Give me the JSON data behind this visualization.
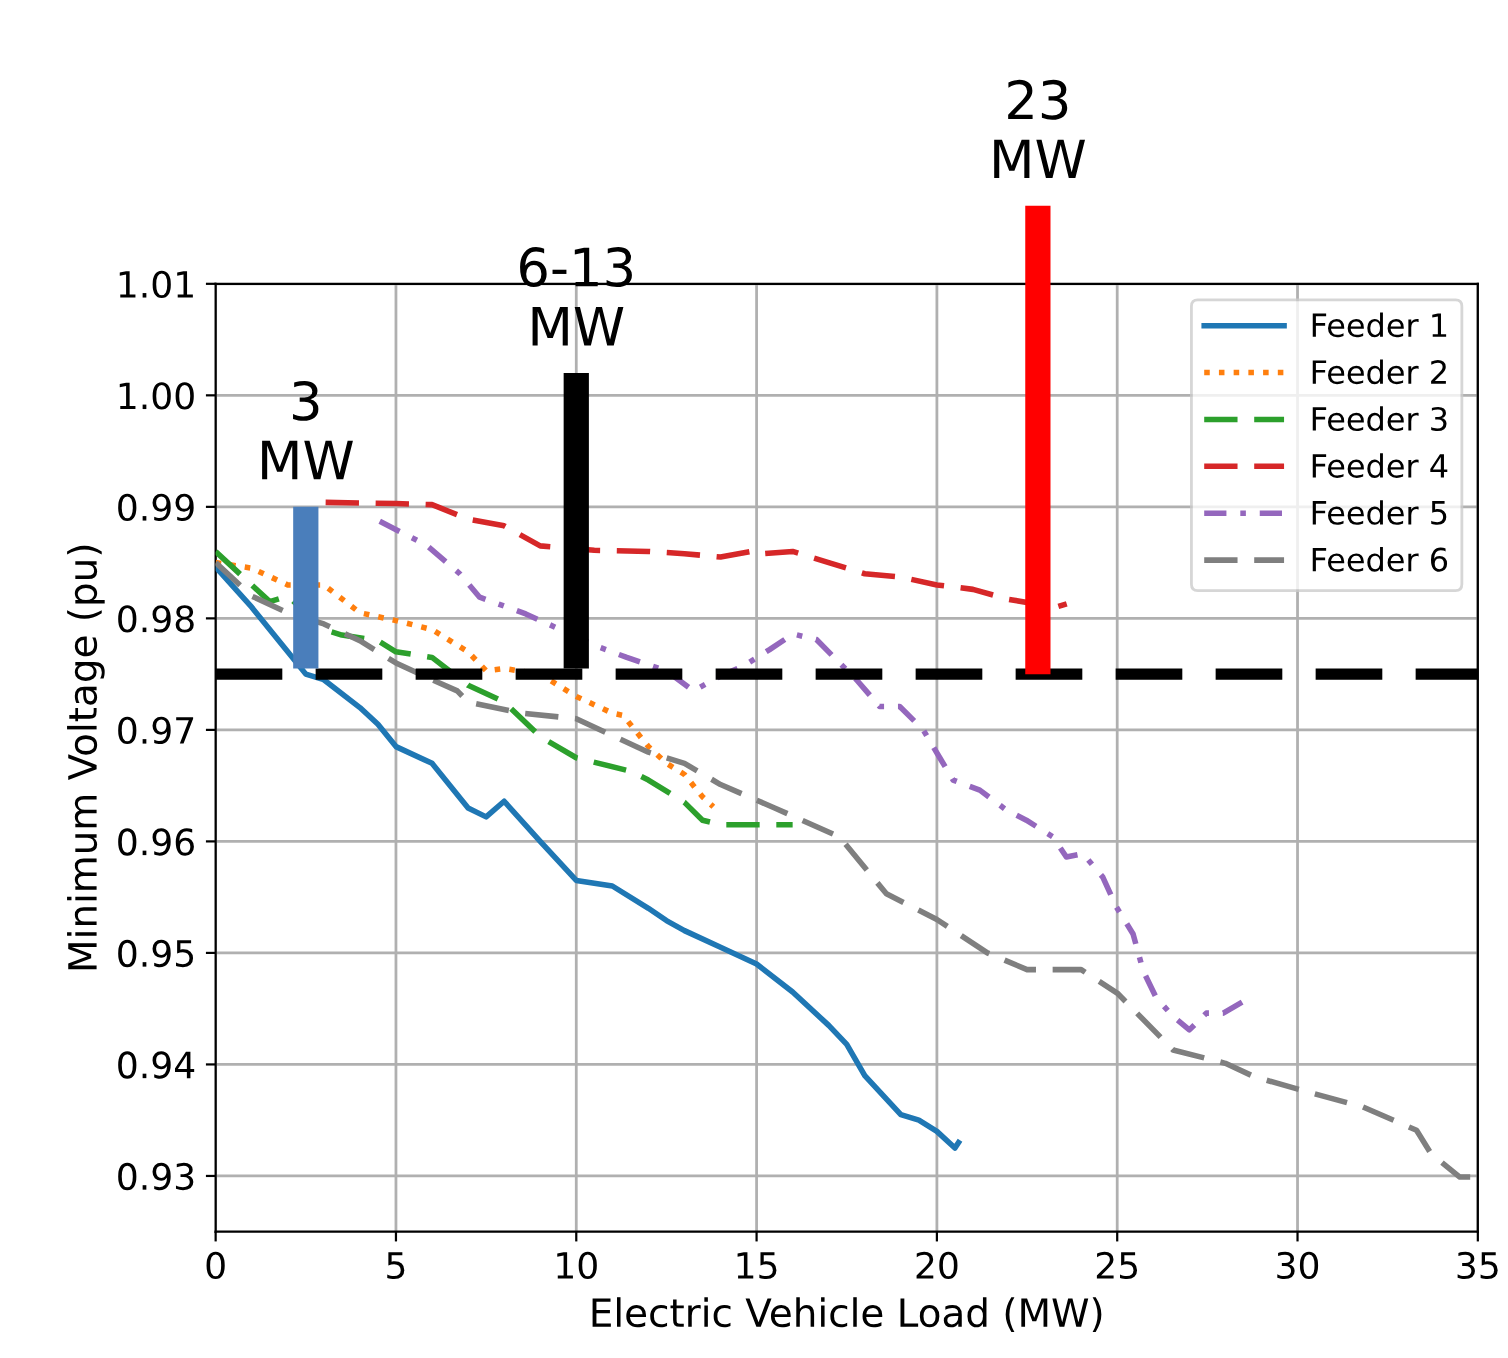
{
  "chart_data": {
    "type": "line",
    "xlabel": "Electric Vehicle Load (MW)",
    "ylabel": "Minimum Voltage (pu)",
    "xlim": [
      0,
      35
    ],
    "xticks": [
      0,
      5,
      10,
      15,
      20,
      25,
      30,
      35
    ],
    "ylim": [
      0.925,
      1.01
    ],
    "yticks": [
      0.93,
      0.94,
      0.95,
      0.96,
      0.97,
      0.98,
      0.99,
      {
        "value": 1.0,
        "label": "1.00"
      },
      1.01
    ],
    "grid": true,
    "legend": "top right",
    "ref_lines": [
      {
        "axis": "y",
        "value": 0.975,
        "label": null,
        "color": "#000000",
        "line_style": "dashed"
      }
    ],
    "annotations": [
      {
        "text": "3\nMW",
        "x": 2.5,
        "y": 0.99
      },
      {
        "text": "6-13\nMW",
        "x": 10,
        "y": 1.002
      },
      {
        "text": "23\nMW",
        "x": 22.8,
        "y": 1.017
      }
    ],
    "series": [
      {
        "name": "Feeder 1",
        "color": "#1f77b4",
        "line_style": "solid",
        "x": [
          0,
          1,
          2,
          2.5,
          3,
          4,
          4.5,
          5,
          6,
          7,
          7.5,
          8,
          9,
          10,
          11,
          12,
          12.5,
          13,
          14,
          15,
          16,
          17,
          17.5,
          18,
          19,
          19.5,
          20,
          20.5,
          20.6
        ],
        "values": [
          0.9846,
          0.981,
          0.977,
          0.975,
          0.9745,
          0.972,
          0.9705,
          0.9685,
          0.967,
          0.963,
          0.9622,
          0.9636,
          0.96,
          0.9565,
          0.956,
          0.954,
          0.9529,
          0.952,
          0.9505,
          0.949,
          0.9465,
          0.9435,
          0.9418,
          0.939,
          0.9355,
          0.935,
          0.934,
          0.9325,
          0.933
        ]
      },
      {
        "name": "Feeder 2",
        "color": "#ff7f0e",
        "line_style": "dotted",
        "x": [
          0,
          1,
          2,
          3,
          4,
          5,
          6,
          7,
          7.5,
          8,
          9,
          10,
          11,
          11.3,
          12,
          12.5,
          13,
          13.5,
          13.8
        ],
        "values": [
          0.985,
          0.9845,
          0.983,
          0.983,
          0.9805,
          0.9798,
          0.979,
          0.977,
          0.9753,
          0.9755,
          0.975,
          0.973,
          0.9715,
          0.9713,
          0.9685,
          0.967,
          0.966,
          0.964,
          0.9631
        ]
      },
      {
        "name": "Feeder 3",
        "color": "#2ca02c",
        "line_style": "dashed",
        "x": [
          0,
          1,
          1.5,
          2,
          3.0,
          3.5,
          4.5,
          5,
          6,
          7,
          8,
          9,
          10,
          11.5,
          12,
          13,
          13.5,
          14,
          15,
          16
        ],
        "values": [
          0.986,
          0.983,
          0.9815,
          0.982,
          0.979,
          0.9785,
          0.978,
          0.977,
          0.9765,
          0.974,
          0.9725,
          0.9694,
          0.9675,
          0.9663,
          0.9655,
          0.9635,
          0.9619,
          0.9615,
          0.9615,
          0.9615
        ]
      },
      {
        "name": "Feeder 4",
        "color": "#d62728",
        "line_style": "dashed",
        "x": [
          3.05,
          5,
          6,
          7,
          8,
          9,
          10.5,
          12,
          13,
          14,
          15,
          15.2,
          16,
          17,
          18,
          19,
          20,
          21,
          22,
          23.3,
          23.6
        ],
        "values": [
          0.9904,
          0.9903,
          0.9902,
          0.9889,
          0.9883,
          0.9865,
          0.9861,
          0.986,
          0.9858,
          0.9855,
          0.9861,
          0.9858,
          0.986,
          0.985,
          0.984,
          0.9837,
          0.983,
          0.9826,
          0.9817,
          0.981,
          0.9813
        ]
      },
      {
        "name": "Feeder 5",
        "color": "#9467bd",
        "line_style": "dashdot",
        "x": [
          4.55,
          5.83,
          6.77,
          7.32,
          8.6,
          10.65,
          11.4,
          12.5,
          13.25,
          13.98,
          14.62,
          15.36,
          16.01,
          16.66,
          17.21,
          17.77,
          18.41,
          18.97,
          19.62,
          20.08,
          20.45,
          21.19,
          21.93,
          22.48,
          23.22,
          23.59,
          24.05,
          24.6,
          24.98,
          25.44,
          25.72,
          26.08,
          26.55,
          27.0,
          27.47,
          27.94,
          28.58
        ],
        "values": [
          0.9887,
          0.9866,
          0.984,
          0.9819,
          0.9804,
          0.9774,
          0.9765,
          0.9753,
          0.9735,
          0.9748,
          0.9757,
          0.9772,
          0.9786,
          0.9781,
          0.9763,
          0.9745,
          0.9721,
          0.9721,
          0.97,
          0.9675,
          0.9655,
          0.9646,
          0.9628,
          0.9619,
          0.9604,
          0.9586,
          0.9589,
          0.9568,
          0.9541,
          0.9517,
          0.9484,
          0.946,
          0.9443,
          0.9431,
          0.9446,
          0.9446,
          0.9458
        ]
      },
      {
        "name": "Feeder 6",
        "color": "#7f7f7f",
        "line_style": "dashed",
        "x": [
          0,
          1,
          2,
          3,
          4,
          5,
          6,
          6.7,
          7,
          8.5,
          10,
          11,
          12,
          13,
          14,
          15.5,
          17.3,
          18.6,
          20,
          21.4,
          22.5,
          24,
          25,
          26.55,
          28,
          28.8,
          30.1,
          31.8,
          33.3,
          33.7,
          34.5,
          35
        ],
        "values": [
          0.985,
          0.982,
          0.9805,
          0.9795,
          0.978,
          0.976,
          0.9745,
          0.9735,
          0.9725,
          0.9715,
          0.971,
          0.9695,
          0.968,
          0.967,
          0.9651,
          0.963,
          0.9604,
          0.9553,
          0.953,
          0.95,
          0.9485,
          0.9485,
          0.9464,
          0.9413,
          0.9401,
          0.9389,
          0.9377,
          0.9362,
          0.9341,
          0.932,
          0.9299,
          0.9299
        ]
      },
      {
        "type": "bar",
        "x": [
          2.5,
          10,
          22.8
        ],
        "base": [
          0.9755,
          0.9755,
          0.975
        ],
        "values": [
          0.0145,
          0.0265,
          0.042
        ],
        "colors": [
          "#4a7ebb",
          "#000000",
          "#ff0000"
        ]
      }
    ]
  }
}
